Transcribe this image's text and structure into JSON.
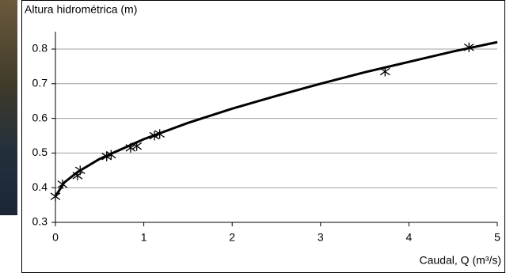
{
  "chart_data": {
    "type": "scatter",
    "y_label": "Altura hidrométrica (m)",
    "x_label": "Caudal, Q (m³/s)",
    "xlim": [
      0,
      5
    ],
    "xticks": [
      0,
      1,
      2,
      3,
      4,
      5
    ],
    "ylim": [
      0.3,
      0.85
    ],
    "yticks": [
      0.3,
      0.4,
      0.5,
      0.6,
      0.7,
      0.8
    ],
    "grid": true,
    "series": [
      {
        "mode": "markers",
        "marker": "asterisk",
        "color": "#000000",
        "x": [
          0,
          0.08,
          0.25,
          0.28,
          0.58,
          0.63,
          0.85,
          0.92,
          1.12,
          1.18,
          3.73,
          4.68
        ],
        "values": [
          0.375,
          0.41,
          0.435,
          0.45,
          0.49,
          0.495,
          0.515,
          0.52,
          0.55,
          0.555,
          0.735,
          0.805
        ]
      },
      {
        "mode": "line",
        "color": "#000000",
        "x": [
          0,
          0.1,
          0.25,
          0.5,
          1,
          1.5,
          2,
          2.5,
          3,
          3.5,
          4,
          4.5,
          5
        ],
        "values": [
          0.375,
          0.415,
          0.445,
          0.483,
          0.54,
          0.587,
          0.628,
          0.665,
          0.7,
          0.733,
          0.763,
          0.793,
          0.82
        ]
      }
    ]
  }
}
